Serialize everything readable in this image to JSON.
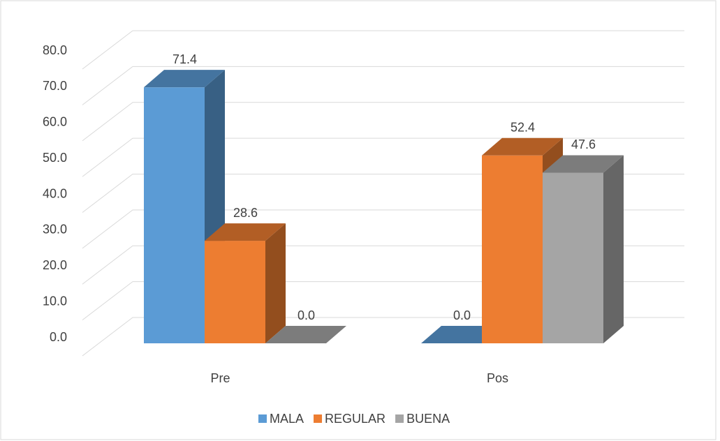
{
  "chart_data": {
    "type": "bar3d",
    "categories": [
      "Pre",
      "Pos"
    ],
    "series": [
      {
        "name": "MALA",
        "color": "#5b9bd5",
        "values": [
          71.4,
          0.0
        ],
        "value_labels": [
          "71.4",
          "0.0"
        ]
      },
      {
        "name": "REGULAR",
        "color": "#ed7d31",
        "values": [
          28.6,
          52.4
        ],
        "value_labels": [
          "28.6",
          "52.4"
        ]
      },
      {
        "name": "BUENA",
        "color": "#a5a5a5",
        "values": [
          0.0,
          47.6
        ],
        "value_labels": [
          "0.0",
          "47.6"
        ]
      }
    ],
    "ylim": [
      0,
      80
    ],
    "yticks": [
      {
        "value": 0,
        "label": "0.0"
      },
      {
        "value": 10,
        "label": "10.0"
      },
      {
        "value": 20,
        "label": "20.0"
      },
      {
        "value": 30,
        "label": "30.0"
      },
      {
        "value": 40,
        "label": "40.0"
      },
      {
        "value": 50,
        "label": "50.0"
      },
      {
        "value": 60,
        "label": "60.0"
      },
      {
        "value": 70,
        "label": "70.0"
      },
      {
        "value": 80,
        "label": "80.0"
      }
    ],
    "grid": true,
    "legend": "bottom"
  }
}
